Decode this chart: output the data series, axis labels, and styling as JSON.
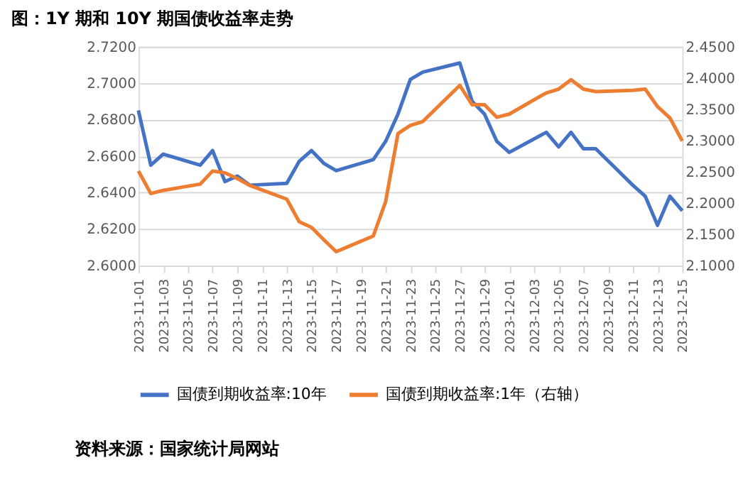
{
  "chart_data": {
    "type": "line",
    "title": "图：1Y 期和 10Y 期国债收益率走势",
    "x": [
      "2023-11-01",
      "2023-11-02",
      "2023-11-03",
      "2023-11-06",
      "2023-11-07",
      "2023-11-08",
      "2023-11-09",
      "2023-11-10",
      "2023-11-13",
      "2023-11-14",
      "2023-11-15",
      "2023-11-16",
      "2023-11-17",
      "2023-11-20",
      "2023-11-21",
      "2023-11-22",
      "2023-11-23",
      "2023-11-24",
      "2023-11-27",
      "2023-11-28",
      "2023-11-29",
      "2023-11-30",
      "2023-12-01",
      "2023-12-04",
      "2023-12-05",
      "2023-12-06",
      "2023-12-07",
      "2023-12-08",
      "2023-12-11",
      "2023-12-12",
      "2023-12-13",
      "2023-12-14",
      "2023-12-15"
    ],
    "series": [
      {
        "name": "国债到期收益率:10年",
        "color": "#4472c4",
        "values": [
          2.685,
          2.655,
          2.661,
          2.655,
          2.663,
          2.646,
          2.649,
          2.644,
          2.645,
          2.657,
          2.663,
          2.656,
          2.652,
          2.658,
          2.668,
          2.683,
          2.702,
          2.706,
          2.711,
          2.69,
          2.683,
          2.668,
          2.662,
          2.673,
          2.665,
          2.673,
          2.664,
          2.664,
          2.644,
          2.638,
          2.622,
          2.638,
          2.63
        ]
      },
      {
        "name": "国债到期收益率:1年（右轴）",
        "color": "#ed7d31",
        "axis": "y2",
        "values": [
          2.251,
          2.215,
          2.22,
          2.23,
          2.251,
          2.248,
          2.239,
          2.228,
          2.206,
          2.17,
          2.161,
          2.141,
          2.122,
          2.147,
          2.202,
          2.311,
          2.324,
          2.33,
          2.388,
          2.357,
          2.357,
          2.337,
          2.342,
          2.376,
          2.382,
          2.397,
          2.382,
          2.378,
          2.38,
          2.382,
          2.354,
          2.336,
          2.299
        ]
      }
    ],
    "xlim": [
      "2023-11-01",
      "2023-12-15"
    ],
    "xticks": [
      "2023-11-01",
      "2023-11-03",
      "2023-11-05",
      "2023-11-07",
      "2023-11-09",
      "2023-11-11",
      "2023-11-13",
      "2023-11-15",
      "2023-11-17",
      "2023-11-19",
      "2023-11-21",
      "2023-11-23",
      "2023-11-25",
      "2023-11-27",
      "2023-11-29",
      "2023-12-01",
      "2023-12-03",
      "2023-12-05",
      "2023-12-07",
      "2023-12-09",
      "2023-12-11",
      "2023-12-13",
      "2023-12-15"
    ],
    "ylim": [
      2.6,
      2.72
    ],
    "yticks": [
      {
        "value": 2.6,
        "label": "2.6000"
      },
      {
        "value": 2.62,
        "label": "2.6200"
      },
      {
        "value": 2.64,
        "label": "2.6400"
      },
      {
        "value": 2.66,
        "label": "2.6600"
      },
      {
        "value": 2.68,
        "label": "2.6800"
      },
      {
        "value": 2.7,
        "label": "2.7000"
      },
      {
        "value": 2.72,
        "label": "2.7200"
      }
    ],
    "y2lim": [
      2.1,
      2.45
    ],
    "y2ticks": [
      {
        "value": 2.1,
        "label": "2.1000"
      },
      {
        "value": 2.15,
        "label": "2.1500"
      },
      {
        "value": 2.2,
        "label": "2.2000"
      },
      {
        "value": 2.25,
        "label": "2.2500"
      },
      {
        "value": 2.3,
        "label": "2.3000"
      },
      {
        "value": 2.35,
        "label": "2.3500"
      },
      {
        "value": 2.4,
        "label": "2.4000"
      },
      {
        "value": 2.45,
        "label": "2.4500"
      }
    ],
    "grid": "y",
    "legend": "bottom",
    "marker": "none",
    "line_style": "solid",
    "annotations": [
      "资料来源：国家统计局网站"
    ]
  }
}
